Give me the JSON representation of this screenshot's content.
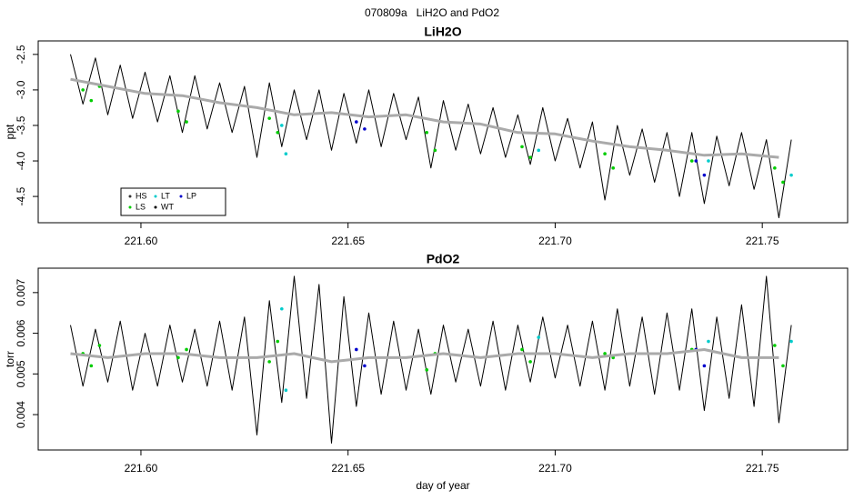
{
  "title": "070809a   LiH2O and PdO2",
  "chart_data": [
    {
      "type": "line",
      "title": "LiH2O",
      "ylabel": "ppt",
      "xlim": [
        221.5752,
        221.7706
      ],
      "ylim": [
        -4.87,
        -2.31
      ],
      "xticks": [
        {
          "value": 221.6,
          "label": "221.60"
        },
        221.65,
        {
          "value": 221.7,
          "label": "221.70"
        },
        221.75
      ],
      "yticks": [
        -2.5,
        {
          "value": -3,
          "label": "-3.0"
        },
        -3.5,
        {
          "value": -4,
          "label": "-4.0"
        },
        -4.5
      ],
      "line": {
        "color": "#000000",
        "x": [
          221.583,
          221.586,
          221.589,
          221.592,
          221.595,
          221.598,
          221.601,
          221.604,
          221.607,
          221.61,
          221.613,
          221.616,
          221.619,
          221.622,
          221.625,
          221.628,
          221.631,
          221.634,
          221.637,
          221.64,
          221.643,
          221.646,
          221.649,
          221.652,
          221.655,
          221.658,
          221.661,
          221.664,
          221.667,
          221.67,
          221.673,
          221.676,
          221.679,
          221.682,
          221.685,
          221.688,
          221.691,
          221.694,
          221.697,
          221.7,
          221.703,
          221.706,
          221.709,
          221.712,
          221.715,
          221.718,
          221.721,
          221.724,
          221.727,
          221.73,
          221.733,
          221.736,
          221.739,
          221.742,
          221.745,
          221.748,
          221.751,
          221.754,
          221.757
        ],
        "values": [
          -2.5,
          -3.2,
          -2.55,
          -3.35,
          -2.65,
          -3.4,
          -2.75,
          -3.45,
          -2.8,
          -3.6,
          -2.8,
          -3.55,
          -2.9,
          -3.6,
          -2.95,
          -3.95,
          -2.9,
          -3.8,
          -3.0,
          -3.7,
          -3.0,
          -3.85,
          -3.05,
          -3.75,
          -3.0,
          -3.8,
          -3.05,
          -3.7,
          -3.1,
          -4.1,
          -3.15,
          -3.85,
          -3.2,
          -3.9,
          -3.25,
          -3.95,
          -3.35,
          -4.05,
          -3.25,
          -4.0,
          -3.4,
          -4.1,
          -3.45,
          -4.55,
          -3.5,
          -4.2,
          -3.55,
          -4.3,
          -3.6,
          -4.5,
          -3.6,
          -4.6,
          -3.65,
          -4.35,
          -3.6,
          -4.4,
          -3.7,
          -4.8,
          -3.7
        ]
      },
      "trend": {
        "color": "#aaaaaa",
        "x": [
          221.583,
          221.592,
          221.601,
          221.61,
          221.619,
          221.628,
          221.637,
          221.646,
          221.655,
          221.664,
          221.673,
          221.682,
          221.691,
          221.7,
          221.709,
          221.718,
          221.727,
          221.736,
          221.745,
          221.754
        ],
        "values": [
          -2.85,
          -2.95,
          -3.05,
          -3.08,
          -3.18,
          -3.25,
          -3.35,
          -3.32,
          -3.38,
          -3.35,
          -3.45,
          -3.48,
          -3.6,
          -3.62,
          -3.72,
          -3.8,
          -3.85,
          -3.92,
          -3.9,
          -3.95
        ]
      },
      "points": [
        {
          "color": "#00cc00",
          "x": [
            221.586,
            221.588,
            221.59,
            221.609,
            221.611,
            221.631,
            221.633,
            221.669,
            221.671,
            221.692,
            221.694,
            221.712,
            221.714,
            221.733,
            221.753,
            221.755
          ],
          "values": [
            -3.0,
            -3.15,
            -2.95,
            -3.3,
            -3.45,
            -3.4,
            -3.6,
            -3.6,
            -3.85,
            -3.8,
            -3.95,
            -3.9,
            -4.1,
            -4.0,
            -4.1,
            -4.3
          ]
        },
        {
          "color": "#00cccc",
          "x": [
            221.634,
            221.635,
            221.696,
            221.737,
            221.757
          ],
          "values": [
            -3.5,
            -3.9,
            -3.85,
            -4.0,
            -4.2
          ]
        },
        {
          "color": "#0000cc",
          "x": [
            221.652,
            221.654,
            221.734,
            221.736
          ],
          "values": [
            -3.45,
            -3.55,
            -4.0,
            -4.2
          ]
        }
      ],
      "legend": {
        "position": "bottom-left",
        "entries": [
          {
            "name": "HS",
            "color": "#333333"
          },
          {
            "name": "LS",
            "color": "#00cc00"
          },
          {
            "name": "LT",
            "color": "#00cccc"
          },
          {
            "name": "WT",
            "color": "#000000"
          },
          {
            "name": "LP",
            "color": "#0000cc"
          }
        ]
      }
    },
    {
      "type": "line",
      "title": "PdO2",
      "ylabel": "torr",
      "xlabel": "day of year",
      "xlim": [
        221.5752,
        221.7706
      ],
      "ylim": [
        0.00313,
        0.0076
      ],
      "xticks": [
        {
          "value": 221.6,
          "label": "221.60"
        },
        221.65,
        {
          "value": 221.7,
          "label": "221.70"
        },
        221.75
      ],
      "yticks": [
        0.004,
        0.005,
        0.006,
        0.007
      ],
      "line": {
        "color": "#000000",
        "x": [
          221.583,
          221.586,
          221.589,
          221.592,
          221.595,
          221.598,
          221.601,
          221.604,
          221.607,
          221.61,
          221.613,
          221.616,
          221.619,
          221.622,
          221.625,
          221.628,
          221.631,
          221.634,
          221.637,
          221.64,
          221.643,
          221.646,
          221.649,
          221.652,
          221.655,
          221.658,
          221.661,
          221.664,
          221.667,
          221.67,
          221.673,
          221.676,
          221.679,
          221.682,
          221.685,
          221.688,
          221.691,
          221.694,
          221.697,
          221.7,
          221.703,
          221.706,
          221.709,
          221.712,
          221.715,
          221.718,
          221.721,
          221.724,
          221.727,
          221.73,
          221.733,
          221.736,
          221.739,
          221.742,
          221.745,
          221.748,
          221.751,
          221.754,
          221.757
        ],
        "values": [
          0.0062,
          0.0047,
          0.0061,
          0.0048,
          0.0063,
          0.0046,
          0.006,
          0.0047,
          0.0062,
          0.0048,
          0.0061,
          0.0047,
          0.0063,
          0.0046,
          0.0064,
          0.0035,
          0.0068,
          0.0043,
          0.0074,
          0.0044,
          0.0072,
          0.0033,
          0.0069,
          0.0042,
          0.0065,
          0.0045,
          0.0063,
          0.0046,
          0.0061,
          0.0045,
          0.0062,
          0.0048,
          0.0061,
          0.0047,
          0.0063,
          0.0046,
          0.0062,
          0.0048,
          0.0064,
          0.0049,
          0.0062,
          0.0047,
          0.0063,
          0.0046,
          0.0066,
          0.0047,
          0.0064,
          0.0045,
          0.0065,
          0.0046,
          0.0066,
          0.0041,
          0.0064,
          0.0044,
          0.0067,
          0.0042,
          0.0074,
          0.0038,
          0.0062
        ]
      },
      "trend": {
        "color": "#aaaaaa",
        "x": [
          221.583,
          221.592,
          221.601,
          221.61,
          221.619,
          221.628,
          221.637,
          221.646,
          221.655,
          221.664,
          221.673,
          221.682,
          221.691,
          221.7,
          221.709,
          221.718,
          221.727,
          221.736,
          221.745,
          221.754
        ],
        "values": [
          0.0055,
          0.0054,
          0.0055,
          0.0055,
          0.0054,
          0.0054,
          0.0055,
          0.0053,
          0.0054,
          0.0054,
          0.0055,
          0.0054,
          0.0055,
          0.0055,
          0.0054,
          0.0055,
          0.0055,
          0.0056,
          0.0054,
          0.0054
        ]
      },
      "points": [
        {
          "color": "#00cc00",
          "x": [
            221.586,
            221.588,
            221.59,
            221.609,
            221.611,
            221.631,
            221.633,
            221.669,
            221.671,
            221.692,
            221.694,
            221.712,
            221.714,
            221.733,
            221.753,
            221.755
          ],
          "values": [
            0.0055,
            0.0052,
            0.0057,
            0.0054,
            0.0056,
            0.0053,
            0.0058,
            0.0051,
            0.0055,
            0.0056,
            0.0053,
            0.0055,
            0.0054,
            0.0056,
            0.0057,
            0.0052
          ]
        },
        {
          "color": "#00cccc",
          "x": [
            221.634,
            221.635,
            221.696,
            221.737,
            221.757
          ],
          "values": [
            0.0066,
            0.0046,
            0.0059,
            0.0058,
            0.0058
          ]
        },
        {
          "color": "#0000cc",
          "x": [
            221.652,
            221.654,
            221.734,
            221.736
          ],
          "values": [
            0.0056,
            0.0052,
            0.0056,
            0.0052
          ]
        }
      ]
    }
  ]
}
